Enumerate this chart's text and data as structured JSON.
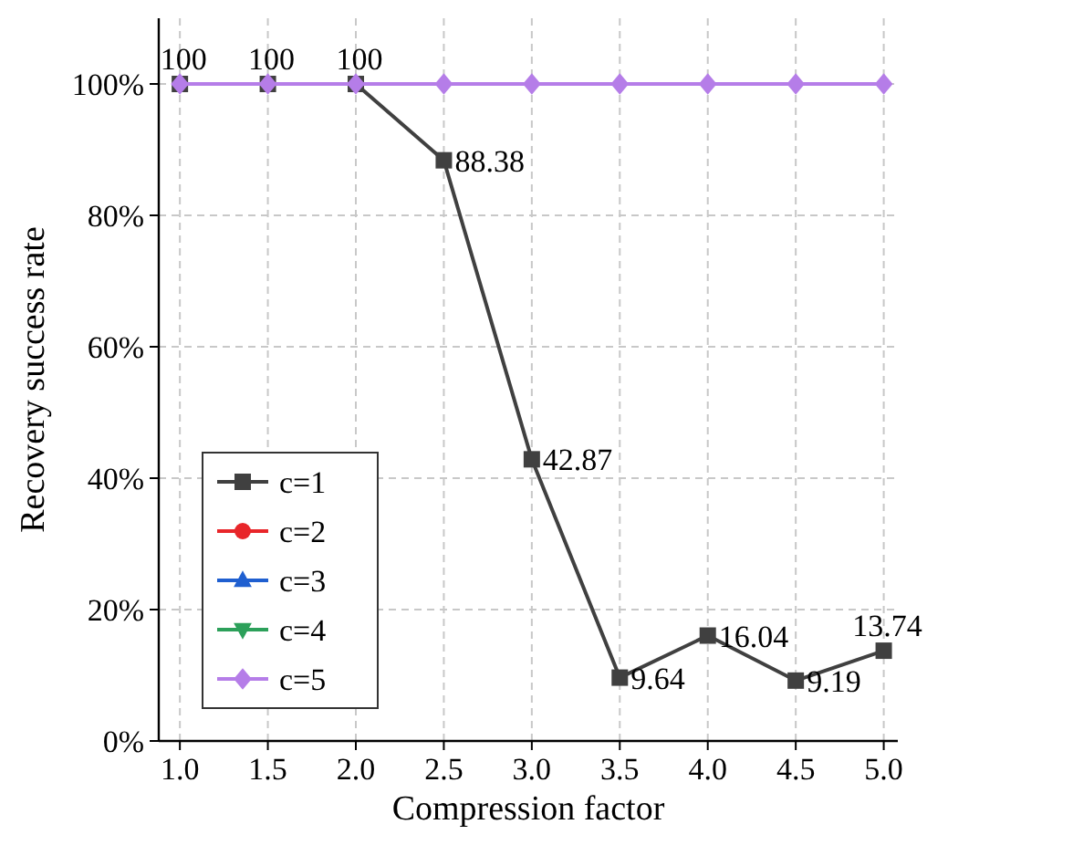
{
  "chart_data": {
    "type": "line",
    "xlabel": "Compression factor",
    "ylabel": "Recovery success rate",
    "x": [
      1.0,
      1.5,
      2.0,
      2.5,
      3.0,
      3.5,
      4.0,
      4.5,
      5.0
    ],
    "xlim": [
      0.88,
      5.08
    ],
    "xticks": [
      {
        "value": 1,
        "label": "1.0"
      },
      {
        "value": 1.5,
        "label": "1.5"
      },
      {
        "value": 2,
        "label": "2.0"
      },
      {
        "value": 2.5,
        "label": "2.5"
      },
      {
        "value": 3,
        "label": "3.0"
      },
      {
        "value": 3.5,
        "label": "3.5"
      },
      {
        "value": 4,
        "label": "4.0"
      },
      {
        "value": 4.5,
        "label": "4.5"
      },
      {
        "value": 5,
        "label": "5.0"
      }
    ],
    "ylim": [
      0,
      110
    ],
    "yticks": [
      {
        "value": 0,
        "label": "0%"
      },
      {
        "value": 20,
        "label": "20%"
      },
      {
        "value": 40,
        "label": "40%"
      },
      {
        "value": 60,
        "label": "60%"
      },
      {
        "value": 80,
        "label": "80%"
      },
      {
        "value": 100,
        "label": "100%"
      }
    ],
    "grid": true,
    "legend": "bottom left",
    "line_style": "solid",
    "series": [
      {
        "name": "c=1",
        "color": "#404040",
        "marker": "square",
        "values": [
          100,
          100,
          100,
          88.38,
          42.87,
          9.64,
          16.04,
          9.19,
          13.74
        ],
        "value_labels": [
          "100",
          "100",
          "100",
          "88.38",
          "42.87",
          "9.64",
          "16.04",
          "9.19",
          "13.74"
        ]
      },
      {
        "name": "c=2",
        "color": "#e8262a",
        "marker": "circle",
        "values": [
          null,
          null,
          null,
          null,
          null,
          null,
          null,
          null,
          null
        ]
      },
      {
        "name": "c=3",
        "color": "#1f5fd0",
        "marker": "triangle",
        "values": [
          null,
          null,
          null,
          null,
          null,
          null,
          null,
          null,
          null
        ]
      },
      {
        "name": "c=4",
        "color": "#2ca05a",
        "marker": "triangle-down",
        "values": [
          null,
          null,
          null,
          null,
          null,
          null,
          null,
          null,
          null
        ]
      },
      {
        "name": "c=5",
        "color": "#b57de8",
        "marker": "diamond",
        "values": [
          100,
          100,
          100,
          100,
          100,
          100,
          100,
          100,
          100
        ]
      }
    ]
  }
}
